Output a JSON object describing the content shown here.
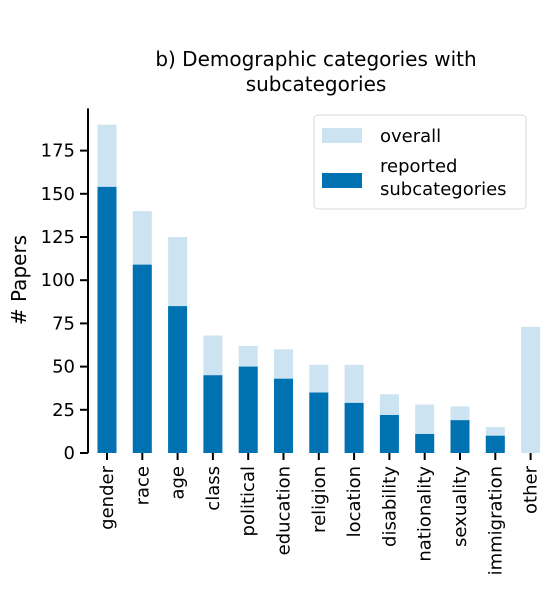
{
  "chart_data": {
    "type": "bar",
    "title": [
      "b) Demographic categories with",
      "subcategories"
    ],
    "xlabel": "",
    "ylabel": "# Papers",
    "ylim": [
      0,
      200
    ],
    "yticks": [
      0,
      25,
      50,
      75,
      100,
      125,
      150,
      175
    ],
    "categories": [
      "gender",
      "race",
      "age",
      "class",
      "political",
      "education",
      "religion",
      "location",
      "disability",
      "nationality",
      "sexuality",
      "immigration",
      "other"
    ],
    "series": [
      {
        "name": "overall",
        "color": "#cce4f2",
        "values": [
          190,
          140,
          125,
          68,
          62,
          60,
          51,
          51,
          34,
          28,
          27,
          15,
          73
        ]
      },
      {
        "name": [
          "reported",
          "subcategories"
        ],
        "color": "#0072b2",
        "values": [
          154,
          109,
          85,
          45,
          50,
          43,
          35,
          29,
          22,
          11,
          19,
          10,
          0
        ]
      }
    ],
    "legend_position": "top-right",
    "grid": false
  }
}
